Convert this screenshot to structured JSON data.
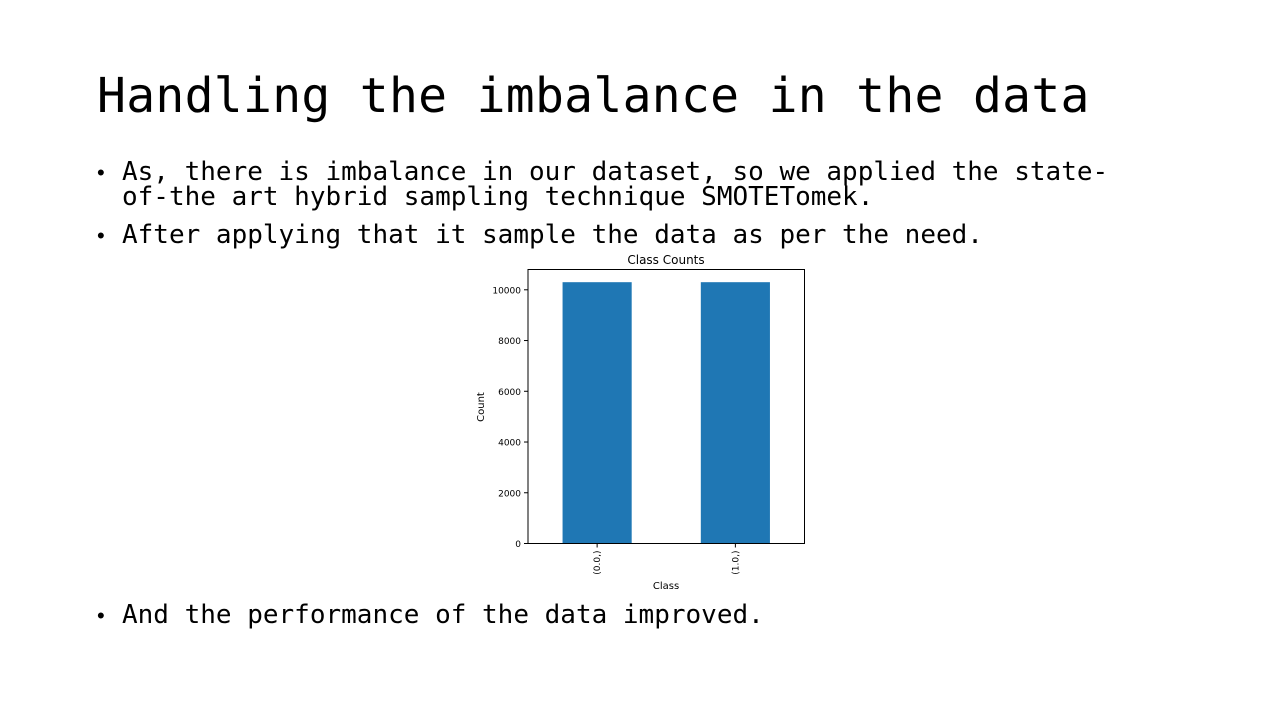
{
  "slide": {
    "title": "Handling the imbalance in the data",
    "bullets": [
      {
        "symbol": "•",
        "text": "As, there is imbalance in our dataset, so we applied the state-\nof-the art hybrid sampling technique SMOTETomek."
      },
      {
        "symbol": "•",
        "text": "After applying that it sample the data as per the need."
      },
      {
        "symbol": "•",
        "text": "And the performance of the data improved."
      }
    ]
  },
  "chart_data": {
    "type": "bar",
    "title": "Class Counts",
    "xlabel": "Class",
    "ylabel": "Count",
    "categories": [
      "(0.0,)",
      "(1.0,)"
    ],
    "values": [
      10300,
      10300
    ],
    "ylim": [
      0,
      10800
    ],
    "yticks": [
      0,
      2000,
      4000,
      6000,
      8000,
      10000
    ],
    "bar_color": "#1f77b4",
    "grid": false,
    "legend": "none"
  }
}
